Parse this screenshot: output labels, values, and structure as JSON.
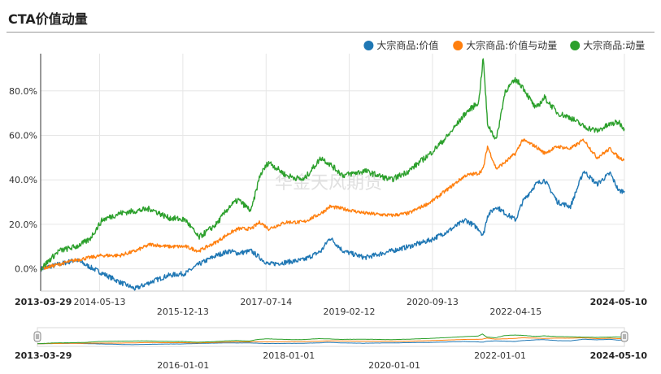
{
  "title": "CTA价值动量",
  "watermark": "华金天风期货",
  "chart_data": {
    "type": "line",
    "x_start": "2013-03-29",
    "x_end": "2024-05-10",
    "x_ticks": [
      {
        "date": "2013-03-29",
        "label": "2013-03-29",
        "bold": true,
        "row": 0
      },
      {
        "date": "2014-05-13",
        "label": "2014-05-13",
        "bold": false,
        "row": 0
      },
      {
        "date": "2015-12-13",
        "label": "2015-12-13",
        "bold": false,
        "row": 1
      },
      {
        "date": "2017-07-14",
        "label": "2017-07-14",
        "bold": false,
        "row": 0
      },
      {
        "date": "2019-02-12",
        "label": "2019-02-12",
        "bold": false,
        "row": 1
      },
      {
        "date": "2020-09-13",
        "label": "2020-09-13",
        "bold": false,
        "row": 0
      },
      {
        "date": "2022-04-15",
        "label": "2022-04-15",
        "bold": false,
        "row": 1
      },
      {
        "date": "2024-05-10",
        "label": "2024-05-10",
        "bold": true,
        "row": 0
      }
    ],
    "y_ticks": [
      "0.0%",
      "20.0%",
      "40.0%",
      "60.0%",
      "80.0%"
    ],
    "y_tick_values": [
      0,
      20,
      40,
      60,
      80
    ],
    "ylim": [
      -10,
      96
    ],
    "grid": true,
    "legend_position": "top-right",
    "series": [
      {
        "name": "大宗商品:价值",
        "color": "#1f77b4",
        "points": [
          [
            "2013-03-29",
            0
          ],
          [
            "2013-08-01",
            2
          ],
          [
            "2013-12-01",
            4
          ],
          [
            "2014-03-01",
            1
          ],
          [
            "2014-06-01",
            -2
          ],
          [
            "2014-10-01",
            -6
          ],
          [
            "2015-01-15",
            -9
          ],
          [
            "2015-05-01",
            -6
          ],
          [
            "2015-09-01",
            -3
          ],
          [
            "2016-01-01",
            -2
          ],
          [
            "2016-04-01",
            2
          ],
          [
            "2016-08-01",
            6
          ],
          [
            "2016-11-01",
            8
          ],
          [
            "2017-01-01",
            7
          ],
          [
            "2017-04-01",
            8
          ],
          [
            "2017-06-01",
            5
          ],
          [
            "2017-08-01",
            2
          ],
          [
            "2017-12-01",
            3
          ],
          [
            "2018-04-01",
            4
          ],
          [
            "2018-08-01",
            8
          ],
          [
            "2018-10-01",
            14
          ],
          [
            "2019-01-01",
            8
          ],
          [
            "2019-06-01",
            5
          ],
          [
            "2019-12-01",
            8
          ],
          [
            "2020-04-01",
            10
          ],
          [
            "2020-09-01",
            13
          ],
          [
            "2021-01-01",
            17
          ],
          [
            "2021-05-01",
            22
          ],
          [
            "2021-08-01",
            18
          ],
          [
            "2021-09-01",
            15
          ],
          [
            "2021-10-01",
            24
          ],
          [
            "2021-12-01",
            28
          ],
          [
            "2022-02-01",
            25
          ],
          [
            "2022-04-15",
            22
          ],
          [
            "2022-06-01",
            30
          ],
          [
            "2022-09-01",
            38
          ],
          [
            "2022-11-01",
            40
          ],
          [
            "2023-02-01",
            30
          ],
          [
            "2023-05-01",
            28
          ],
          [
            "2023-08-01",
            44
          ],
          [
            "2023-11-01",
            38
          ],
          [
            "2024-02-01",
            43
          ],
          [
            "2024-04-01",
            35
          ],
          [
            "2024-05-10",
            35
          ]
        ]
      },
      {
        "name": "大宗商品:价值与动量",
        "color": "#ff7f0e",
        "points": [
          [
            "2013-03-29",
            0
          ],
          [
            "2013-08-01",
            2
          ],
          [
            "2013-12-01",
            4
          ],
          [
            "2014-03-01",
            5
          ],
          [
            "2014-06-01",
            6
          ],
          [
            "2014-10-01",
            6
          ],
          [
            "2015-01-15",
            8
          ],
          [
            "2015-05-01",
            11
          ],
          [
            "2015-09-01",
            10
          ],
          [
            "2016-01-01",
            10
          ],
          [
            "2016-04-01",
            8
          ],
          [
            "2016-08-01",
            12
          ],
          [
            "2016-11-01",
            16
          ],
          [
            "2017-01-01",
            18
          ],
          [
            "2017-04-01",
            18
          ],
          [
            "2017-06-01",
            21
          ],
          [
            "2017-08-01",
            18
          ],
          [
            "2017-12-01",
            21
          ],
          [
            "2018-04-01",
            21
          ],
          [
            "2018-08-01",
            25
          ],
          [
            "2018-10-01",
            28
          ],
          [
            "2019-01-01",
            27
          ],
          [
            "2019-06-01",
            25
          ],
          [
            "2019-12-01",
            24
          ],
          [
            "2020-04-01",
            25
          ],
          [
            "2020-09-01",
            30
          ],
          [
            "2021-01-01",
            36
          ],
          [
            "2021-05-01",
            42
          ],
          [
            "2021-08-01",
            43
          ],
          [
            "2021-09-01",
            45
          ],
          [
            "2021-10-01",
            55
          ],
          [
            "2021-12-01",
            45
          ],
          [
            "2022-02-01",
            48
          ],
          [
            "2022-04-15",
            52
          ],
          [
            "2022-06-01",
            58
          ],
          [
            "2022-09-01",
            55
          ],
          [
            "2022-11-01",
            52
          ],
          [
            "2023-02-01",
            55
          ],
          [
            "2023-05-01",
            54
          ],
          [
            "2023-08-01",
            58
          ],
          [
            "2023-11-01",
            50
          ],
          [
            "2024-02-01",
            54
          ],
          [
            "2024-04-01",
            50
          ],
          [
            "2024-05-10",
            49
          ]
        ]
      },
      {
        "name": "大宗商品:动量",
        "color": "#2ca02c",
        "points": [
          [
            "2013-03-29",
            0
          ],
          [
            "2013-08-01",
            8
          ],
          [
            "2013-12-01",
            10
          ],
          [
            "2014-03-01",
            13
          ],
          [
            "2014-06-01",
            22
          ],
          [
            "2014-10-01",
            25
          ],
          [
            "2015-01-15",
            26
          ],
          [
            "2015-05-01",
            27
          ],
          [
            "2015-09-01",
            23
          ],
          [
            "2016-01-01",
            22
          ],
          [
            "2016-04-01",
            14
          ],
          [
            "2016-08-01",
            20
          ],
          [
            "2016-11-01",
            28
          ],
          [
            "2017-01-01",
            31
          ],
          [
            "2017-04-01",
            26
          ],
          [
            "2017-06-01",
            42
          ],
          [
            "2017-08-01",
            48
          ],
          [
            "2017-12-01",
            42
          ],
          [
            "2018-04-01",
            40
          ],
          [
            "2018-08-01",
            50
          ],
          [
            "2018-10-01",
            47
          ],
          [
            "2019-01-01",
            42
          ],
          [
            "2019-06-01",
            44
          ],
          [
            "2019-12-01",
            40
          ],
          [
            "2020-04-01",
            44
          ],
          [
            "2020-09-01",
            52
          ],
          [
            "2021-01-01",
            60
          ],
          [
            "2021-05-01",
            70
          ],
          [
            "2021-08-01",
            75
          ],
          [
            "2021-09-01",
            95
          ],
          [
            "2021-10-01",
            65
          ],
          [
            "2021-12-01",
            58
          ],
          [
            "2022-02-01",
            80
          ],
          [
            "2022-04-15",
            85
          ],
          [
            "2022-06-01",
            82
          ],
          [
            "2022-09-01",
            72
          ],
          [
            "2022-11-01",
            77
          ],
          [
            "2023-02-01",
            70
          ],
          [
            "2023-05-01",
            68
          ],
          [
            "2023-08-01",
            64
          ],
          [
            "2023-11-01",
            62
          ],
          [
            "2024-02-01",
            65
          ],
          [
            "2024-04-01",
            66
          ],
          [
            "2024-05-10",
            63
          ]
        ]
      }
    ],
    "navigator": {
      "x_ticks": [
        {
          "date": "2013-03-29",
          "label": "2013-03-29",
          "bold": true,
          "row": 0
        },
        {
          "date": "2016-01-01",
          "label": "2016-01-01",
          "bold": false,
          "row": 1
        },
        {
          "date": "2018-01-01",
          "label": "2018-01-01",
          "bold": false,
          "row": 0
        },
        {
          "date": "2020-01-01",
          "label": "2020-01-01",
          "bold": false,
          "row": 1
        },
        {
          "date": "2022-01-01",
          "label": "2022-01-01",
          "bold": false,
          "row": 0
        },
        {
          "date": "2024-05-10",
          "label": "2024-05-10",
          "bold": true,
          "row": 0
        }
      ]
    }
  }
}
